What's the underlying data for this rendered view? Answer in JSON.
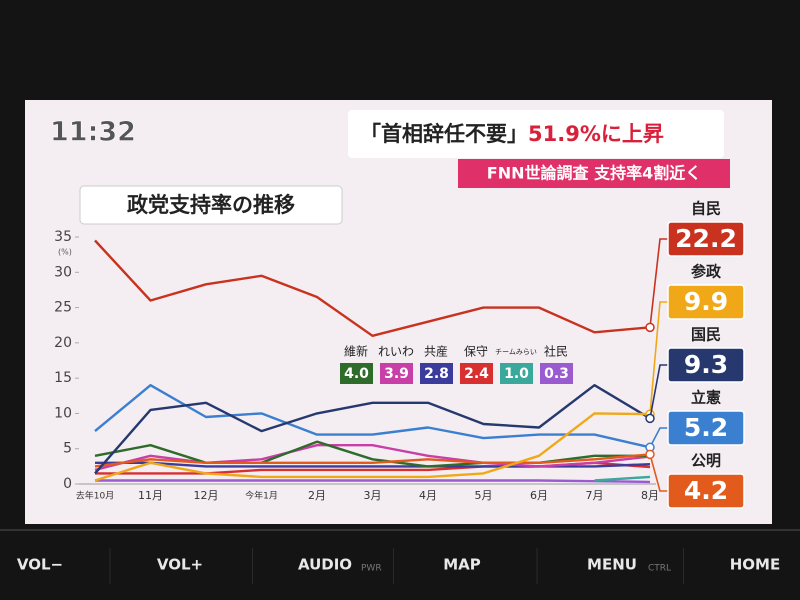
{
  "screen": {
    "time": "11:32",
    "headline": [
      "「首相辞任不要」",
      "51.9%に上昇"
    ],
    "subheadline": "FNN世論調査 支持率4割近く"
  },
  "buttons": [
    {
      "label": "VOL−"
    },
    {
      "label": "VOL+"
    },
    {
      "label": "AUDIO",
      "sub": "PWR"
    },
    {
      "label": "MAP"
    },
    {
      "label": "MENU",
      "sub": "CTRL"
    },
    {
      "label": "HOME"
    }
  ],
  "chart_data": {
    "type": "line",
    "title": "政党支持率の推移",
    "y_unit": "(%)",
    "categories": [
      "去年10月",
      "11月",
      "12月",
      "今年1月",
      "2月",
      "3月",
      "4月",
      "5月",
      "6月",
      "7月",
      "8月"
    ],
    "ylim": [
      0,
      35
    ],
    "yticks": [
      0,
      5,
      10,
      15,
      20,
      25,
      30,
      35
    ],
    "grid": false,
    "series": [
      {
        "name": "自民",
        "color": "#c8321e",
        "label_style": "side",
        "values": [
          34.5,
          26,
          28.3,
          29.5,
          26.5,
          21,
          23,
          25,
          25,
          21.5,
          22.2
        ]
      },
      {
        "name": "参政",
        "color": "#f0a818",
        "label_style": "side",
        "values": [
          0.5,
          3,
          1.5,
          1,
          1,
          1,
          1,
          1.5,
          4,
          10,
          9.9
        ]
      },
      {
        "name": "国民",
        "color": "#26386e",
        "label_style": "side",
        "values": [
          1.5,
          10.5,
          11.5,
          7.5,
          10,
          11.5,
          11.5,
          8.5,
          8,
          14,
          9.3
        ]
      },
      {
        "name": "立憲",
        "color": "#3a7fd0",
        "label_style": "side",
        "values": [
          7.5,
          14,
          9.5,
          10,
          7,
          7,
          8,
          6.5,
          7,
          7,
          5.2
        ]
      },
      {
        "name": "公明",
        "color": "#e25a1c",
        "label_style": "side",
        "values": [
          2.5,
          3.5,
          3,
          3,
          3,
          3,
          3.5,
          3,
          3,
          3.5,
          4.2
        ]
      },
      {
        "name": "維新",
        "color": "#2f6b2a",
        "label_style": "legend",
        "values": [
          4,
          5.5,
          3,
          3,
          6,
          3.5,
          2.5,
          3,
          3,
          4,
          4.0
        ],
        "value_labels": [
          null,
          null,
          null,
          null,
          null,
          null,
          null,
          null,
          null,
          null,
          "4.0"
        ]
      },
      {
        "name": "れいわ",
        "color": "#c83fa8",
        "label_style": "legend",
        "values": [
          2,
          4,
          3,
          3.5,
          5.5,
          5.5,
          4,
          3,
          2.5,
          3,
          3.9
        ]
      },
      {
        "name": "共産",
        "color": "#3c3c9c",
        "label_style": "legend",
        "values": [
          3,
          3,
          2.5,
          2.5,
          2.5,
          2.5,
          2.5,
          2.5,
          2.5,
          2.5,
          2.8
        ]
      },
      {
        "name": "保守",
        "color": "#d83030",
        "label_style": "legend",
        "values": [
          1.5,
          1.5,
          1.5,
          2,
          2,
          2,
          2,
          2.5,
          2.5,
          3,
          2.4
        ]
      },
      {
        "name": "チームみらい",
        "color": "#3aa89a",
        "label_style": "legend",
        "values": [
          null,
          null,
          null,
          null,
          null,
          null,
          null,
          null,
          null,
          0.5,
          1.0
        ],
        "value_labels": [
          null,
          null,
          null,
          null,
          null,
          null,
          null,
          null,
          null,
          null,
          "1.0"
        ]
      },
      {
        "name": "社民",
        "color": "#9a5ad0",
        "label_style": "legend",
        "values": [
          0.5,
          0.5,
          0.5,
          0.5,
          0.5,
          0.5,
          0.5,
          0.5,
          0.5,
          0.4,
          0.3
        ]
      }
    ]
  }
}
